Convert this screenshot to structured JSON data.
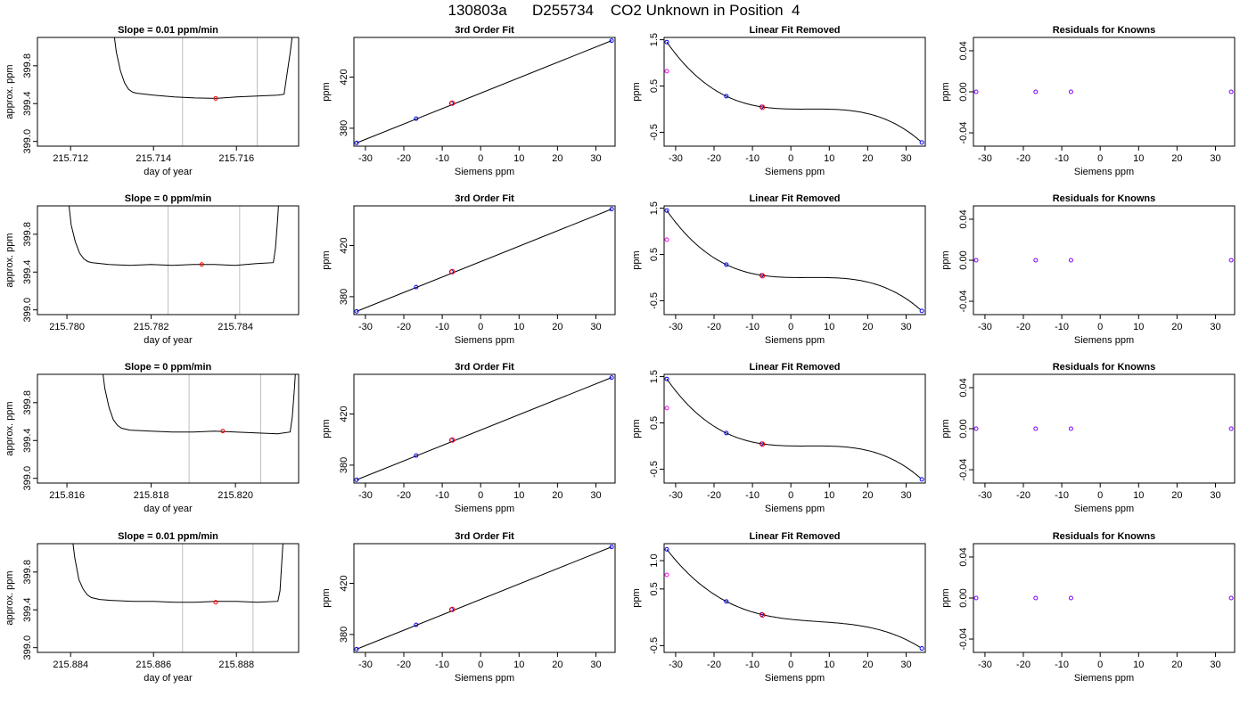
{
  "page": {
    "title": "130803a      D255734    CO2 Unknown in Position  4"
  },
  "colors": {
    "axis": "#000000",
    "gridline": "#bebebe",
    "line": "#000000",
    "known_point": "#0000ff",
    "unknown_point": "#ff0000",
    "removed_point": "#ff00ff",
    "residual_point": "#7f00ff"
  },
  "chart_data": [
    {
      "type": "line",
      "title": "Slope =  0.01  ppm/min",
      "xlabel": "day of year",
      "ylabel": "approx. ppm",
      "xlim": [
        215.7112,
        215.7175
      ],
      "ylim": [
        398.95,
        400.1
      ],
      "xticks": [
        "215.712",
        "215.714",
        "215.716"
      ],
      "yticks": [
        "399.0",
        "399.4",
        "399.8"
      ],
      "vlines": [
        215.7147,
        215.7165
      ],
      "marker": [
        215.7155,
        399.455
      ],
      "series": [
        {
          "x": [
            215.713,
            215.7131,
            215.7132,
            215.7133,
            215.7134,
            215.7135,
            215.7136,
            215.714,
            215.7145,
            215.715,
            215.7155,
            215.716,
            215.7165,
            215.717,
            215.71715,
            215.7172,
            215.7173,
            215.7174
          ],
          "y": [
            400.3,
            399.95,
            399.75,
            399.62,
            399.55,
            399.52,
            399.51,
            399.49,
            399.47,
            399.46,
            399.455,
            399.47,
            399.48,
            399.49,
            399.5,
            399.65,
            399.95,
            400.3
          ]
        }
      ]
    },
    {
      "type": "line",
      "title": "3rd Order Fit",
      "xlabel": "Siemens ppm",
      "ylabel": "ppm",
      "xlim": [
        -33,
        35
      ],
      "ylim": [
        366,
        451
      ],
      "xticks": [
        "-30",
        "-20",
        "-10",
        "0",
        "10",
        "20",
        "30"
      ],
      "yticks": [
        "380",
        "420"
      ],
      "known_x": [
        -32.3,
        -16.8,
        -7.6,
        34.1
      ],
      "known_y": [
        368.5,
        387.5,
        399.5,
        448.5
      ],
      "unknown": [
        -7.4,
        399.6
      ]
    },
    {
      "type": "line",
      "title": "Linear Fit Removed",
      "xlabel": "Siemens ppm",
      "ylabel": "ppm",
      "xlim": [
        -33,
        35
      ],
      "ylim": [
        -0.8,
        1.55
      ],
      "xticks": [
        "-30",
        "-20",
        "-10",
        "0",
        "10",
        "20",
        "30"
      ],
      "yticks": [
        "-0.5",
        "0.5",
        "1.5"
      ],
      "known_x": [
        -32.3,
        -16.8,
        -7.6,
        34.1
      ],
      "known_y": [
        1.45,
        0.28,
        0.05,
        -0.72
      ],
      "removed": [
        -32.3,
        0.82
      ],
      "unknown": [
        -7.4,
        0.04
      ]
    },
    {
      "type": "scatter",
      "title": "Residuals for Knowns",
      "xlabel": "Siemens ppm",
      "ylabel": "ppm",
      "xlim": [
        -33,
        35
      ],
      "ylim": [
        -0.053,
        0.053
      ],
      "xticks": [
        "-30",
        "-20",
        "-10",
        "0",
        "10",
        "20",
        "30"
      ],
      "yticks": [
        "-0.04",
        "0.00",
        "0.04"
      ],
      "x": [
        -32.3,
        -16.8,
        -7.6,
        34.1
      ],
      "y": [
        0,
        0,
        0,
        0
      ]
    },
    {
      "type": "line",
      "title": "Slope =  0  ppm/min",
      "xlabel": "day of year",
      "ylabel": "approx. ppm",
      "xlim": [
        215.7793,
        215.7855
      ],
      "ylim": [
        398.95,
        400.1
      ],
      "xticks": [
        "215.780",
        "215.782",
        "215.784"
      ],
      "yticks": [
        "399.0",
        "399.4",
        "399.8"
      ],
      "vlines": [
        215.7824,
        215.7841
      ],
      "marker": [
        215.7832,
        399.48
      ],
      "series": [
        {
          "x": [
            215.78,
            215.7801,
            215.7802,
            215.7803,
            215.7804,
            215.7805,
            215.7806,
            215.781,
            215.7815,
            215.782,
            215.7825,
            215.783,
            215.7835,
            215.784,
            215.7845,
            215.7849,
            215.78495,
            215.785,
            215.78505
          ],
          "y": [
            400.3,
            399.9,
            399.72,
            399.6,
            399.54,
            399.51,
            399.5,
            399.48,
            399.47,
            399.48,
            399.47,
            399.48,
            399.48,
            399.47,
            399.49,
            399.5,
            399.65,
            399.95,
            400.3
          ]
        }
      ]
    },
    {
      "type": "line",
      "title": "3rd Order Fit",
      "xlabel": "Siemens ppm",
      "ylabel": "ppm",
      "xlim": [
        -33,
        35
      ],
      "ylim": [
        366,
        451
      ],
      "xticks": [
        "-30",
        "-20",
        "-10",
        "0",
        "10",
        "20",
        "30"
      ],
      "yticks": [
        "380",
        "420"
      ],
      "known_x": [
        -32.3,
        -16.8,
        -7.6,
        34.1
      ],
      "known_y": [
        368.5,
        387.5,
        399.5,
        448.5
      ],
      "unknown": [
        -7.4,
        399.6
      ]
    },
    {
      "type": "line",
      "title": "Linear Fit Removed",
      "xlabel": "Siemens ppm",
      "ylabel": "ppm",
      "xlim": [
        -33,
        35
      ],
      "ylim": [
        -0.8,
        1.55
      ],
      "xticks": [
        "-30",
        "-20",
        "-10",
        "0",
        "10",
        "20",
        "30"
      ],
      "yticks": [
        "-0.5",
        "0.5",
        "1.5"
      ],
      "known_x": [
        -32.3,
        -16.8,
        -7.6,
        34.1
      ],
      "known_y": [
        1.45,
        0.28,
        0.05,
        -0.72
      ],
      "removed": [
        -32.3,
        0.82
      ],
      "unknown": [
        -7.4,
        0.04
      ]
    },
    {
      "type": "scatter",
      "title": "Residuals for Knowns",
      "xlabel": "Siemens ppm",
      "ylabel": "ppm",
      "xlim": [
        -33,
        35
      ],
      "ylim": [
        -0.053,
        0.053
      ],
      "xticks": [
        "-30",
        "-20",
        "-10",
        "0",
        "10",
        "20",
        "30"
      ],
      "yticks": [
        "-0.04",
        "0.00",
        "0.04"
      ],
      "x": [
        -32.3,
        -16.8,
        -7.6,
        34.1
      ],
      "y": [
        0,
        0,
        0,
        0
      ]
    },
    {
      "type": "line",
      "title": "Slope =  0  ppm/min",
      "xlabel": "day of year",
      "ylabel": "approx. ppm",
      "xlim": [
        215.8153,
        215.8215
      ],
      "ylim": [
        398.95,
        400.1
      ],
      "xticks": [
        "215.816",
        "215.818",
        "215.820"
      ],
      "yticks": [
        "399.0",
        "399.4",
        "399.8"
      ],
      "vlines": [
        215.8189,
        215.8206
      ],
      "marker": [
        215.8197,
        399.5
      ],
      "series": [
        {
          "x": [
            215.8168,
            215.8169,
            215.817,
            215.8171,
            215.8172,
            215.8173,
            215.8175,
            215.818,
            215.8185,
            215.819,
            215.8195,
            215.82,
            215.8205,
            215.821,
            215.8213,
            215.82135,
            215.8214,
            215.82145
          ],
          "y": [
            400.3,
            399.95,
            399.75,
            399.62,
            399.56,
            399.53,
            399.51,
            399.5,
            399.49,
            399.49,
            399.5,
            399.49,
            399.48,
            399.47,
            399.49,
            399.65,
            399.95,
            400.3
          ]
        }
      ]
    },
    {
      "type": "line",
      "title": "3rd Order Fit",
      "xlabel": "Siemens ppm",
      "ylabel": "ppm",
      "xlim": [
        -33,
        35
      ],
      "ylim": [
        366,
        451
      ],
      "xticks": [
        "-30",
        "-20",
        "-10",
        "0",
        "10",
        "20",
        "30"
      ],
      "yticks": [
        "380",
        "420"
      ],
      "known_x": [
        -32.3,
        -16.8,
        -7.6,
        34.1
      ],
      "known_y": [
        368.5,
        387.5,
        399.5,
        448.5
      ],
      "unknown": [
        -7.4,
        399.6
      ]
    },
    {
      "type": "line",
      "title": "Linear Fit Removed",
      "xlabel": "Siemens ppm",
      "ylabel": "ppm",
      "xlim": [
        -33,
        35
      ],
      "ylim": [
        -0.8,
        1.55
      ],
      "xticks": [
        "-30",
        "-20",
        "-10",
        "0",
        "10",
        "20",
        "30"
      ],
      "yticks": [
        "-0.5",
        "0.5",
        "1.5"
      ],
      "known_x": [
        -32.3,
        -16.8,
        -7.6,
        34.1
      ],
      "known_y": [
        1.45,
        0.28,
        0.05,
        -0.72
      ],
      "removed": [
        -32.3,
        0.82
      ],
      "unknown": [
        -7.4,
        0.04
      ]
    },
    {
      "type": "scatter",
      "title": "Residuals for Knowns",
      "xlabel": "Siemens ppm",
      "ylabel": "ppm",
      "xlim": [
        -33,
        35
      ],
      "ylim": [
        -0.053,
        0.053
      ],
      "xticks": [
        "-30",
        "-20",
        "-10",
        "0",
        "10",
        "20",
        "30"
      ],
      "yticks": [
        "-0.04",
        "0.00",
        "0.04"
      ],
      "x": [
        -32.3,
        -16.8,
        -7.6,
        34.1
      ],
      "y": [
        0,
        0,
        0,
        0
      ]
    },
    {
      "type": "line",
      "title": "Slope =  0.01  ppm/min",
      "xlabel": "day of year",
      "ylabel": "approx. ppm",
      "xlim": [
        215.8832,
        215.8895
      ],
      "ylim": [
        398.95,
        400.1
      ],
      "xticks": [
        "215.884",
        "215.886",
        "215.888"
      ],
      "yticks": [
        "399.0",
        "399.4",
        "399.8"
      ],
      "vlines": [
        215.8867,
        215.8884
      ],
      "marker": [
        215.8875,
        399.48
      ],
      "series": [
        {
          "x": [
            215.884,
            215.8841,
            215.8842,
            215.8843,
            215.8844,
            215.8845,
            215.8847,
            215.885,
            215.8855,
            215.886,
            215.8865,
            215.887,
            215.8875,
            215.888,
            215.8885,
            215.889,
            215.88905,
            215.8891,
            215.88915
          ],
          "y": [
            400.3,
            399.95,
            399.72,
            399.62,
            399.56,
            399.53,
            399.51,
            399.5,
            399.49,
            399.49,
            399.48,
            399.48,
            399.49,
            399.49,
            399.48,
            399.49,
            399.6,
            399.95,
            400.3
          ]
        }
      ]
    },
    {
      "type": "line",
      "title": "3rd Order Fit",
      "xlabel": "Siemens ppm",
      "ylabel": "ppm",
      "xlim": [
        -33,
        35
      ],
      "ylim": [
        366,
        451
      ],
      "xticks": [
        "-30",
        "-20",
        "-10",
        "0",
        "10",
        "20",
        "30"
      ],
      "yticks": [
        "380",
        "420"
      ],
      "known_x": [
        -32.3,
        -16.8,
        -7.6,
        34.1
      ],
      "known_y": [
        368.5,
        387.5,
        399.5,
        448.5
      ],
      "unknown": [
        -7.4,
        399.6
      ]
    },
    {
      "type": "line",
      "title": "Linear Fit Removed",
      "xlabel": "Siemens ppm",
      "ylabel": "ppm",
      "xlim": [
        -33,
        35
      ],
      "ylim": [
        -0.62,
        1.3
      ],
      "xticks": [
        "-30",
        "-20",
        "-10",
        "0",
        "10",
        "20",
        "30"
      ],
      "yticks": [
        "-0.5",
        "0.5",
        "1.0"
      ],
      "known_x": [
        -32.3,
        -16.8,
        -7.6,
        34.1
      ],
      "known_y": [
        1.2,
        0.28,
        0.05,
        -0.55
      ],
      "removed": [
        -32.3,
        0.75
      ],
      "unknown": [
        -7.4,
        0.04
      ]
    },
    {
      "type": "scatter",
      "title": "Residuals for Knowns",
      "xlabel": "Siemens ppm",
      "ylabel": "ppm",
      "xlim": [
        -33,
        35
      ],
      "ylim": [
        -0.053,
        0.053
      ],
      "xticks": [
        "-30",
        "-20",
        "-10",
        "0",
        "10",
        "20",
        "30"
      ],
      "yticks": [
        "-0.04",
        "0.00",
        "0.04"
      ],
      "x": [
        -32.3,
        -16.8,
        -7.6,
        34.1
      ],
      "y": [
        0,
        0,
        0,
        0
      ]
    }
  ]
}
